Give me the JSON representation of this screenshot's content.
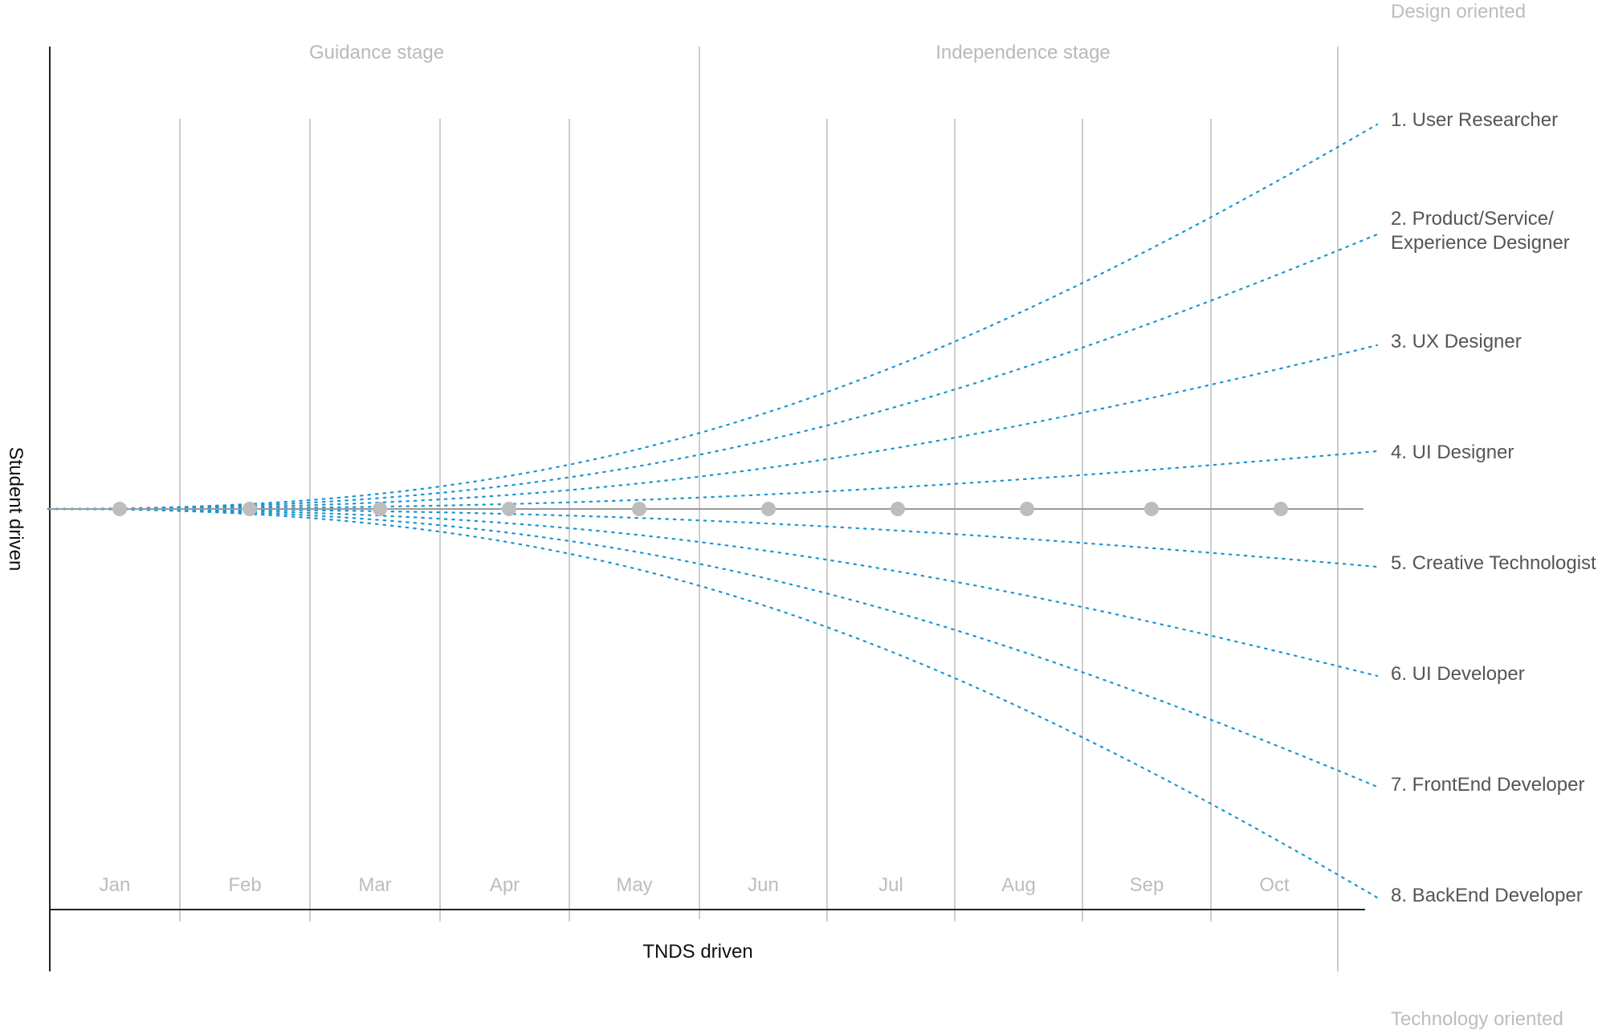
{
  "stages": [
    "Guidance stage",
    "Independence stage"
  ],
  "months": [
    "Jan",
    "Feb",
    "Mar",
    "Apr",
    "May",
    "Jun",
    "Jul",
    "Aug",
    "Sep",
    "Oct"
  ],
  "axes": {
    "vertical_label": "Student driven",
    "horizontal_label": "TNDS driven"
  },
  "orientation": {
    "top": "Design oriented",
    "bottom": "Technology oriented"
  },
  "roles": [
    {
      "lines": [
        "1. User Researcher"
      ]
    },
    {
      "lines": [
        "2. Product/Service/",
        "Experience Designer"
      ]
    },
    {
      "lines": [
        "3. UX Designer"
      ]
    },
    {
      "lines": [
        "4. UI Designer"
      ]
    },
    {
      "lines": [
        "5. Creative Technologist"
      ]
    },
    {
      "lines": [
        "6. UI Developer"
      ]
    },
    {
      "lines": [
        "7. FrontEnd Developer"
      ]
    },
    {
      "lines": [
        "8. BackEnd Developer"
      ]
    }
  ],
  "colors": {
    "path": "#1a96cf",
    "milestone": "#bdbdbd",
    "grid": "#bdbdbd",
    "axis": "#222222"
  }
}
